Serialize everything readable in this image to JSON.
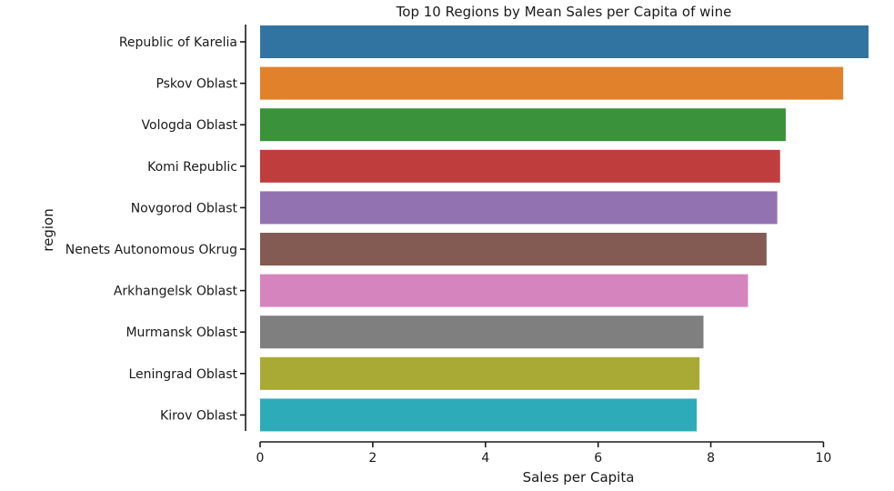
{
  "chart_data": {
    "type": "bar",
    "orientation": "horizontal",
    "title": "Top 10 Regions by Mean Sales per Capita of wine",
    "xlabel": "Sales per Capita",
    "ylabel": "region",
    "xlim": [
      0,
      10.8
    ],
    "xticks": [
      0,
      2,
      4,
      6,
      8,
      10
    ],
    "grid": false,
    "categories": [
      "Republic of Karelia",
      "Pskov Oblast",
      "Vologda Oblast",
      "Komi Republic",
      "Novgorod Oblast",
      "Nenets Autonomous Okrug",
      "Arkhangelsk Oblast",
      "Murmansk Oblast",
      "Leningrad Oblast",
      "Kirov Oblast"
    ],
    "values": [
      10.8,
      10.35,
      9.33,
      9.23,
      9.18,
      8.99,
      8.66,
      7.87,
      7.8,
      7.75
    ],
    "colors": [
      "#3274a1",
      "#e1812c",
      "#3a923a",
      "#c03d3e",
      "#9372b2",
      "#845b53",
      "#d684bd",
      "#7f7f7f",
      "#a9aa35",
      "#2eabb8"
    ]
  }
}
